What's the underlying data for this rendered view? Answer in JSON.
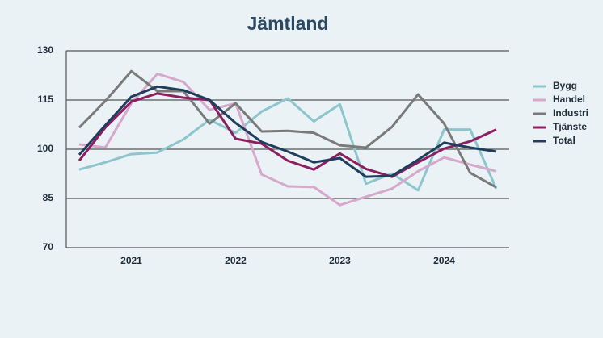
{
  "chart_data": {
    "type": "line",
    "title": "Jämtland",
    "categories": [
      null,
      null,
      "2021",
      null,
      null,
      null,
      "2022",
      null,
      null,
      null,
      "2023",
      null,
      null,
      null,
      "2024",
      null,
      null
    ],
    "series": [
      {
        "name": "Bygg",
        "color": "#8cc5cc",
        "values": [
          93.8,
          96,
          98.5,
          99,
          103,
          109,
          105,
          111.5,
          115.5,
          108.5,
          113.7,
          89.5,
          92.6,
          87.5,
          106,
          106,
          88
        ]
      },
      {
        "name": "Handel",
        "color": "#d5a8cc",
        "values": [
          101.5,
          100.5,
          114,
          123,
          120.5,
          112,
          114,
          92.3,
          88.7,
          88.5,
          83,
          85.5,
          88,
          93.3,
          97.5,
          95.3,
          93.3
        ]
      },
      {
        "name": "Industri",
        "color": "#7a7a7a",
        "values": [
          106.6,
          114.7,
          123.8,
          117.7,
          117.7,
          107.8,
          114,
          105.4,
          105.6,
          105,
          101.2,
          100.5,
          106.8,
          116.7,
          107.8,
          92.8,
          88.4
        ]
      },
      {
        "name": "Tjänste",
        "color": "#8c1f5f",
        "values": [
          96.5,
          106.6,
          114.5,
          117,
          115.7,
          115,
          103.2,
          101.7,
          96.5,
          93.8,
          98.7,
          94,
          91.6,
          96,
          100.2,
          102.4,
          106
        ]
      },
      {
        "name": "Total",
        "color": "#1f3d5c",
        "values": [
          98.3,
          107.3,
          116,
          119.1,
          118,
          115,
          108,
          102.2,
          99.3,
          96,
          97.3,
          91.6,
          91.9,
          96.8,
          102,
          100.5,
          99.3
        ]
      }
    ],
    "ylim": [
      70,
      130
    ],
    "yticks": [
      70,
      85,
      100,
      115,
      130
    ],
    "grid": true,
    "legend": "right"
  }
}
